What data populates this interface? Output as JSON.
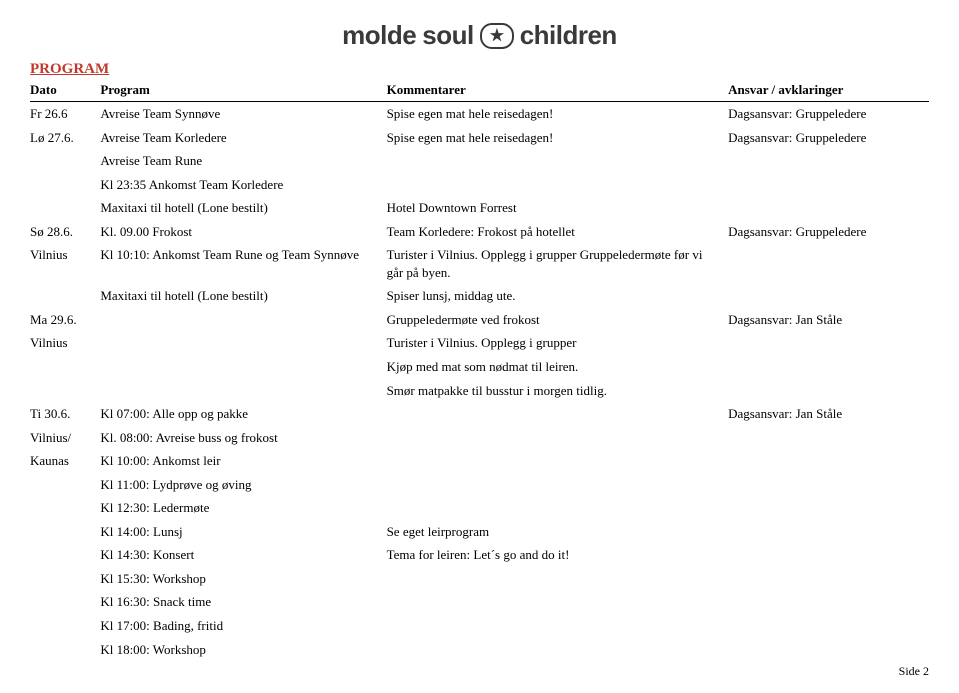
{
  "logo": {
    "text1": "molde",
    "text2": "soul",
    "text3": "children"
  },
  "section_title": "PROGRAM",
  "headers": {
    "c1": "Dato",
    "c2": "Program",
    "c3": "Kommentarer",
    "c4": "Ansvar / avklaringer"
  },
  "rows": [
    {
      "c1": "Fr 26.6",
      "c2": "Avreise Team Synnøve",
      "c3": "Spise egen mat hele reisedagen!",
      "c4": "Dagsansvar: Gruppeledere"
    },
    {
      "c1": "Lø 27.6.",
      "c2": "Avreise Team Korledere",
      "c3": "Spise egen mat hele reisedagen!",
      "c4": "Dagsansvar: Gruppeledere"
    },
    {
      "c1": "",
      "c2": "Avreise Team Rune",
      "c3": "",
      "c4": ""
    },
    {
      "c1": "",
      "c2": "Kl 23:35 Ankomst Team Korledere",
      "c3": "",
      "c4": ""
    },
    {
      "c1": "",
      "c2": "Maxitaxi til hotell (Lone bestilt)",
      "c3": "Hotel Downtown Forrest",
      "c4": ""
    },
    {
      "c1": "Sø 28.6.",
      "c2": "Kl. 09.00 Frokost",
      "c3": "Team Korledere: Frokost på hotellet",
      "c4": "Dagsansvar: Gruppeledere"
    },
    {
      "c1": "Vilnius",
      "c2": "Kl 10:10: Ankomst Team Rune og Team Synnøve",
      "c3": "Turister i Vilnius. Opplegg i grupper Gruppeledermøte før vi går på byen.",
      "c4": ""
    },
    {
      "c1": "",
      "c2": "Maxitaxi til hotell (Lone bestilt)",
      "c3": "Spiser lunsj, middag ute.",
      "c4": ""
    },
    {
      "c1": "Ma 29.6.",
      "c2": "",
      "c3": "Gruppeledermøte ved frokost",
      "c4": "Dagsansvar: Jan Ståle"
    },
    {
      "c1": "Vilnius",
      "c2": "",
      "c3": "Turister i Vilnius. Opplegg i grupper",
      "c4": ""
    },
    {
      "c1": "",
      "c2": "",
      "c3": "Kjøp med mat som nødmat til leiren.",
      "c4": ""
    },
    {
      "c1": "",
      "c2": "",
      "c3": "Smør matpakke til busstur i morgen tidlig.",
      "c4": ""
    },
    {
      "c1": "Ti 30.6.",
      "c2": "Kl 07:00: Alle opp og pakke",
      "c3": "",
      "c4": "Dagsansvar: Jan Ståle"
    },
    {
      "c1": "Vilnius/",
      "c2": "Kl. 08:00: Avreise buss og frokost",
      "c3": "",
      "c4": ""
    },
    {
      "c1": "Kaunas",
      "c2": "Kl 10:00: Ankomst leir",
      "c3": "",
      "c4": ""
    },
    {
      "c1": "",
      "c2": "Kl 11:00: Lydprøve og øving",
      "c3": "",
      "c4": ""
    },
    {
      "c1": "",
      "c2": "Kl 12:30: Ledermøte",
      "c3": "",
      "c4": ""
    },
    {
      "c1": "",
      "c2": "Kl 14:00: Lunsj",
      "c3": "Se eget leirprogram",
      "c4": ""
    },
    {
      "c1": "",
      "c2": "Kl 14:30: Konsert",
      "c3": "Tema for leiren: Let´s go and do it!",
      "c4": ""
    },
    {
      "c1": "",
      "c2": "Kl 15:30: Workshop",
      "c3": "",
      "c4": ""
    },
    {
      "c1": "",
      "c2": "Kl 16:30: Snack time",
      "c3": "",
      "c4": ""
    },
    {
      "c1": "",
      "c2": "Kl 17:00: Bading, fritid",
      "c3": "",
      "c4": ""
    },
    {
      "c1": "",
      "c2": "Kl 18:00: Workshop",
      "c3": "",
      "c4": ""
    }
  ],
  "page_label": "Side 2"
}
